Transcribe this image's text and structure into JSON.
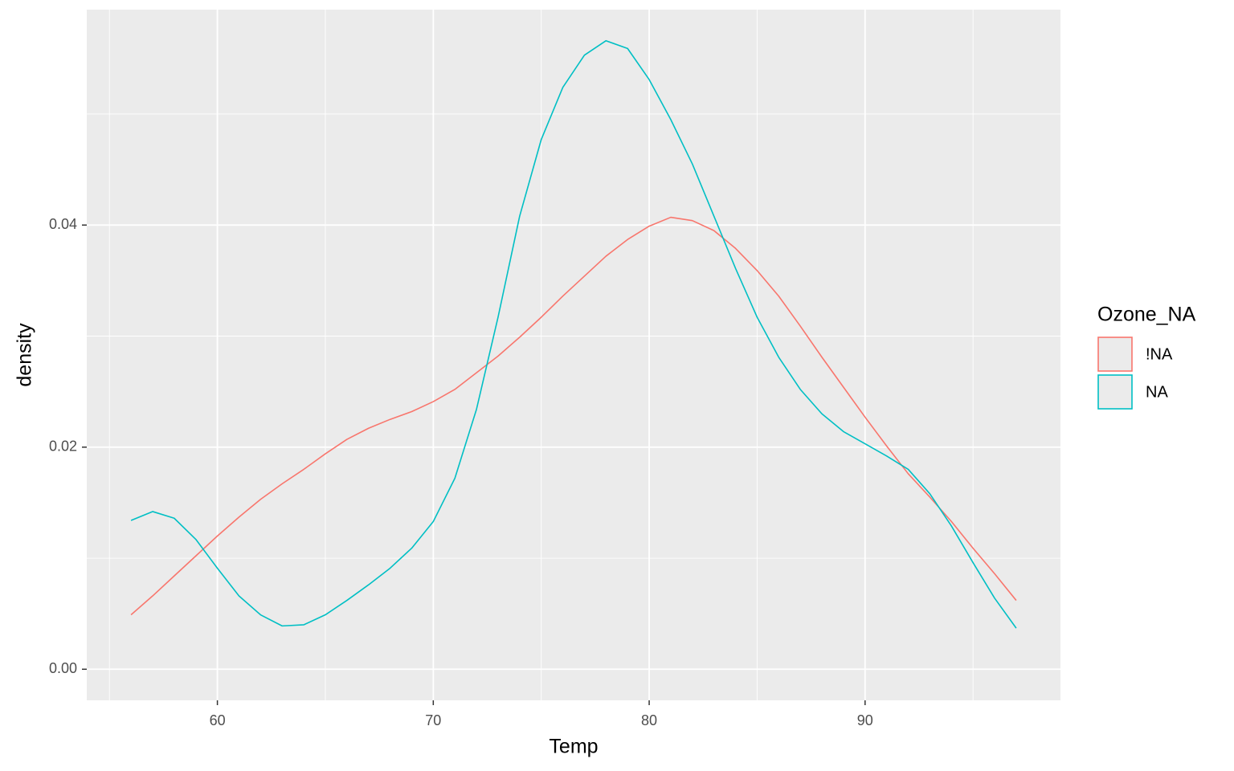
{
  "chart_data": {
    "type": "line",
    "x_label": "Temp",
    "y_label": "density",
    "legend_title": "Ozone_NA",
    "x": [
      56,
      57,
      58,
      59,
      60,
      61,
      62,
      63,
      64,
      65,
      66,
      67,
      68,
      69,
      70,
      71,
      72,
      73,
      74,
      75,
      76,
      77,
      78,
      79,
      80,
      81,
      82,
      83,
      84,
      85,
      86,
      87,
      88,
      89,
      90,
      91,
      92,
      93,
      94,
      95,
      96,
      97
    ],
    "series": [
      {
        "name": "!NA",
        "color": "#F8766D",
        "values": [
          0.0049,
          0.0066,
          0.0084,
          0.0102,
          0.012,
          0.0137,
          0.0153,
          0.0167,
          0.018,
          0.0194,
          0.0207,
          0.0217,
          0.0225,
          0.0232,
          0.0241,
          0.0252,
          0.0267,
          0.0282,
          0.0299,
          0.0317,
          0.0336,
          0.0354,
          0.0372,
          0.0387,
          0.0399,
          0.0407,
          0.0404,
          0.0395,
          0.0379,
          0.0359,
          0.0336,
          0.0309,
          0.0281,
          0.0254,
          0.0227,
          0.0201,
          0.0176,
          0.0155,
          0.0133,
          0.0109,
          0.0086,
          0.0062
        ]
      },
      {
        "name": "NA",
        "color": "#00BFC4",
        "values": [
          0.0134,
          0.0142,
          0.0136,
          0.0117,
          0.0091,
          0.0066,
          0.0049,
          0.0039,
          0.004,
          0.0049,
          0.0062,
          0.0076,
          0.0091,
          0.0109,
          0.0133,
          0.0172,
          0.0234,
          0.0317,
          0.0408,
          0.0477,
          0.0524,
          0.0553,
          0.0566,
          0.0559,
          0.0531,
          0.0495,
          0.0455,
          0.0408,
          0.0361,
          0.0317,
          0.0281,
          0.0252,
          0.023,
          0.0214,
          0.0203,
          0.0192,
          0.018,
          0.0158,
          0.0129,
          0.0096,
          0.0064,
          0.0037
        ]
      }
    ],
    "xlim": [
      53.95,
      99.05
    ],
    "ylim": [
      -0.0028,
      0.0594
    ],
    "xticks": [
      60,
      70,
      80,
      90
    ],
    "yticks": [
      {
        "value": 0,
        "label": "0.00"
      },
      {
        "value": 0.02,
        "label": "0.02"
      },
      {
        "value": 0.04,
        "label": "0.04"
      }
    ],
    "x_minor_grid": [
      55,
      65,
      75,
      85,
      95
    ],
    "y_minor_grid": [
      0.01,
      0.03,
      0.05
    ],
    "grid": true,
    "legend_position": "right"
  }
}
